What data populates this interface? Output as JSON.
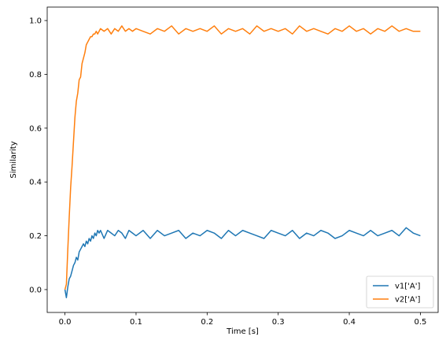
{
  "chart_data": {
    "type": "line",
    "title": "",
    "xlabel": "Time [s]",
    "ylabel": "Similarity",
    "xlim": [
      -0.025,
      0.525
    ],
    "ylim": [
      -0.085,
      1.05
    ],
    "xticks": [
      0.0,
      0.1,
      0.2,
      0.3,
      0.4,
      0.5
    ],
    "xtick_labels": [
      "0.0",
      "0.1",
      "0.2",
      "0.3",
      "0.4",
      "0.5"
    ],
    "yticks": [
      0.0,
      0.2,
      0.4,
      0.6,
      0.8,
      1.0
    ],
    "ytick_labels": [
      "0.0",
      "0.2",
      "0.4",
      "0.6",
      "0.8",
      "1.0"
    ],
    "grid": false,
    "legend": "lower-right",
    "series": [
      {
        "name": "v1['A']",
        "color": "#1f77b4",
        "x": [
          0.0,
          0.002,
          0.004,
          0.006,
          0.008,
          0.01,
          0.012,
          0.014,
          0.016,
          0.018,
          0.02,
          0.022,
          0.024,
          0.026,
          0.028,
          0.03,
          0.032,
          0.034,
          0.036,
          0.038,
          0.04,
          0.042,
          0.044,
          0.046,
          0.048,
          0.05,
          0.055,
          0.06,
          0.065,
          0.07,
          0.075,
          0.08,
          0.085,
          0.09,
          0.095,
          0.1,
          0.11,
          0.12,
          0.13,
          0.14,
          0.15,
          0.16,
          0.17,
          0.18,
          0.19,
          0.2,
          0.21,
          0.22,
          0.23,
          0.24,
          0.25,
          0.26,
          0.27,
          0.28,
          0.29,
          0.3,
          0.31,
          0.32,
          0.33,
          0.34,
          0.35,
          0.36,
          0.37,
          0.38,
          0.39,
          0.4,
          0.41,
          0.42,
          0.43,
          0.44,
          0.45,
          0.46,
          0.47,
          0.48,
          0.49,
          0.5
        ],
        "y": [
          0.0,
          -0.03,
          0.01,
          0.04,
          0.05,
          0.07,
          0.09,
          0.1,
          0.12,
          0.11,
          0.14,
          0.15,
          0.16,
          0.17,
          0.16,
          0.18,
          0.17,
          0.19,
          0.18,
          0.2,
          0.19,
          0.21,
          0.2,
          0.22,
          0.21,
          0.22,
          0.19,
          0.22,
          0.21,
          0.2,
          0.22,
          0.21,
          0.19,
          0.22,
          0.21,
          0.2,
          0.22,
          0.19,
          0.22,
          0.2,
          0.21,
          0.22,
          0.19,
          0.21,
          0.2,
          0.22,
          0.21,
          0.19,
          0.22,
          0.2,
          0.22,
          0.21,
          0.2,
          0.19,
          0.22,
          0.21,
          0.2,
          0.22,
          0.19,
          0.21,
          0.2,
          0.22,
          0.21,
          0.19,
          0.2,
          0.22,
          0.21,
          0.2,
          0.22,
          0.2,
          0.21,
          0.22,
          0.2,
          0.23,
          0.21,
          0.2
        ]
      },
      {
        "name": "v2['A']",
        "color": "#ff7f0e",
        "x": [
          0.0,
          0.002,
          0.004,
          0.006,
          0.008,
          0.01,
          0.012,
          0.014,
          0.016,
          0.018,
          0.02,
          0.022,
          0.024,
          0.026,
          0.028,
          0.03,
          0.032,
          0.034,
          0.036,
          0.038,
          0.04,
          0.042,
          0.044,
          0.046,
          0.048,
          0.05,
          0.055,
          0.06,
          0.065,
          0.07,
          0.075,
          0.08,
          0.085,
          0.09,
          0.095,
          0.1,
          0.11,
          0.12,
          0.13,
          0.14,
          0.15,
          0.16,
          0.17,
          0.18,
          0.19,
          0.2,
          0.21,
          0.22,
          0.23,
          0.24,
          0.25,
          0.26,
          0.27,
          0.28,
          0.29,
          0.3,
          0.31,
          0.32,
          0.33,
          0.34,
          0.35,
          0.36,
          0.37,
          0.38,
          0.39,
          0.4,
          0.41,
          0.42,
          0.43,
          0.44,
          0.45,
          0.46,
          0.47,
          0.48,
          0.49,
          0.5
        ],
        "y": [
          0.0,
          0.02,
          0.15,
          0.27,
          0.38,
          0.46,
          0.55,
          0.64,
          0.7,
          0.73,
          0.78,
          0.79,
          0.84,
          0.86,
          0.88,
          0.91,
          0.92,
          0.93,
          0.94,
          0.94,
          0.95,
          0.95,
          0.96,
          0.95,
          0.96,
          0.97,
          0.96,
          0.97,
          0.95,
          0.97,
          0.96,
          0.98,
          0.96,
          0.97,
          0.96,
          0.97,
          0.96,
          0.95,
          0.97,
          0.96,
          0.98,
          0.95,
          0.97,
          0.96,
          0.97,
          0.96,
          0.98,
          0.95,
          0.97,
          0.96,
          0.97,
          0.95,
          0.98,
          0.96,
          0.97,
          0.96,
          0.97,
          0.95,
          0.98,
          0.96,
          0.97,
          0.96,
          0.95,
          0.97,
          0.96,
          0.98,
          0.96,
          0.97,
          0.95,
          0.97,
          0.96,
          0.98,
          0.96,
          0.97,
          0.96,
          0.96
        ]
      }
    ]
  }
}
